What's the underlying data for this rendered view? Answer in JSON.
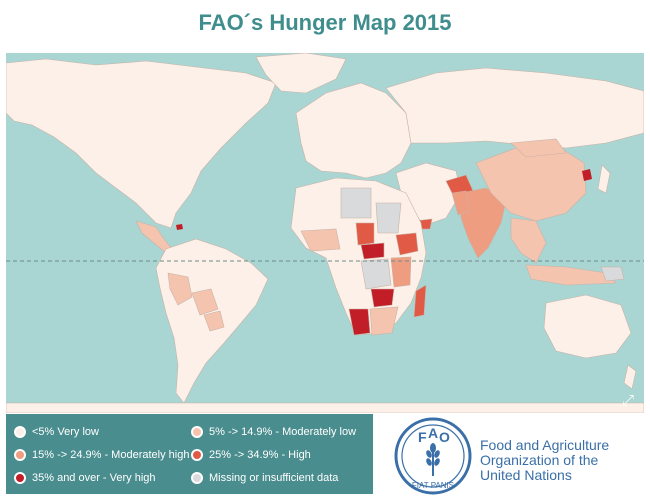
{
  "title": "FAO´s Hunger Map 2015",
  "colors": {
    "ocean": "#a9d5d3",
    "very_low": "#fdf0e8",
    "moderately_low": "#f5c4ae",
    "moderately_high": "#ee9d80",
    "high": "#e05a45",
    "very_high": "#c21e27",
    "missing": "#d9dadb",
    "legend_bg": "#4a8d8e",
    "title": "#3f8d8d",
    "fao_blue": "#3a6fa8"
  },
  "legend": [
    {
      "label": "<5% Very low",
      "color": "#fdf0e8"
    },
    {
      "label": "5% -> 14.9% - Moderately low",
      "color": "#f5c4ae"
    },
    {
      "label": "15% -> 24.9% - Moderately high",
      "color": "#ee9d80"
    },
    {
      "label": "25% -> 34.9% - High",
      "color": "#e05a45"
    },
    {
      "label": "35% and over - Very high",
      "color": "#c21e27"
    },
    {
      "label": "Missing or insufficient data",
      "color": "#d9dadb"
    }
  ],
  "map": {
    "expand_icon": "expand-arrows-icon"
  },
  "logo": {
    "letters": [
      "F",
      "A",
      "O"
    ],
    "motto": "FIAT PANIS",
    "org_name": [
      "Food and Agriculture",
      "Organization of the",
      "United Nations"
    ]
  }
}
